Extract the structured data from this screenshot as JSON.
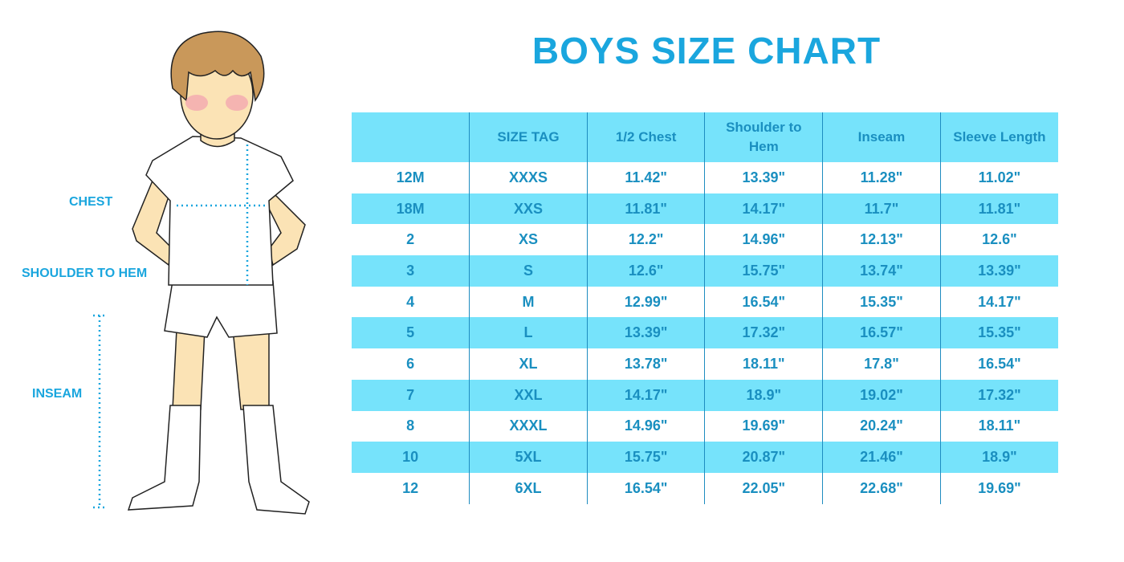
{
  "title": "BOYS SIZE CHART",
  "figure_labels": {
    "chest": "CHEST",
    "shoulder_to_hem": "SHOULDER TO HEM",
    "inseam": "INSEAM"
  },
  "colors": {
    "accent": "#1AA6DE",
    "stripe": "#76E3FB",
    "text": "#1A8FC0"
  },
  "table": {
    "headers": [
      "",
      "SIZE TAG",
      "1/2 Chest",
      "Shoulder to Hem",
      "Inseam",
      "Sleeve Length"
    ],
    "rows": [
      [
        "12M",
        "XXXS",
        "11.42\"",
        "13.39\"",
        "11.28\"",
        "11.02\""
      ],
      [
        "18M",
        "XXS",
        "11.81\"",
        "14.17\"",
        "11.7\"",
        "11.81\""
      ],
      [
        "2",
        "XS",
        "12.2\"",
        "14.96\"",
        "12.13\"",
        "12.6\""
      ],
      [
        "3",
        "S",
        "12.6\"",
        "15.75\"",
        "13.74\"",
        "13.39\""
      ],
      [
        "4",
        "M",
        "12.99\"",
        "16.54\"",
        "15.35\"",
        "14.17\""
      ],
      [
        "5",
        "L",
        "13.39\"",
        "17.32\"",
        "16.57\"",
        "15.35\""
      ],
      [
        "6",
        "XL",
        "13.78\"",
        "18.11\"",
        "17.8\"",
        "16.54\""
      ],
      [
        "7",
        "XXL",
        "14.17\"",
        "18.9\"",
        "19.02\"",
        "17.32\""
      ],
      [
        "8",
        "XXXL",
        "14.96\"",
        "19.69\"",
        "20.24\"",
        "18.11\""
      ],
      [
        "10",
        "5XL",
        "15.75\"",
        "20.87\"",
        "21.46\"",
        "18.9\""
      ],
      [
        "12",
        "6XL",
        "16.54\"",
        "22.05\"",
        "22.68\"",
        "19.69\""
      ]
    ]
  }
}
